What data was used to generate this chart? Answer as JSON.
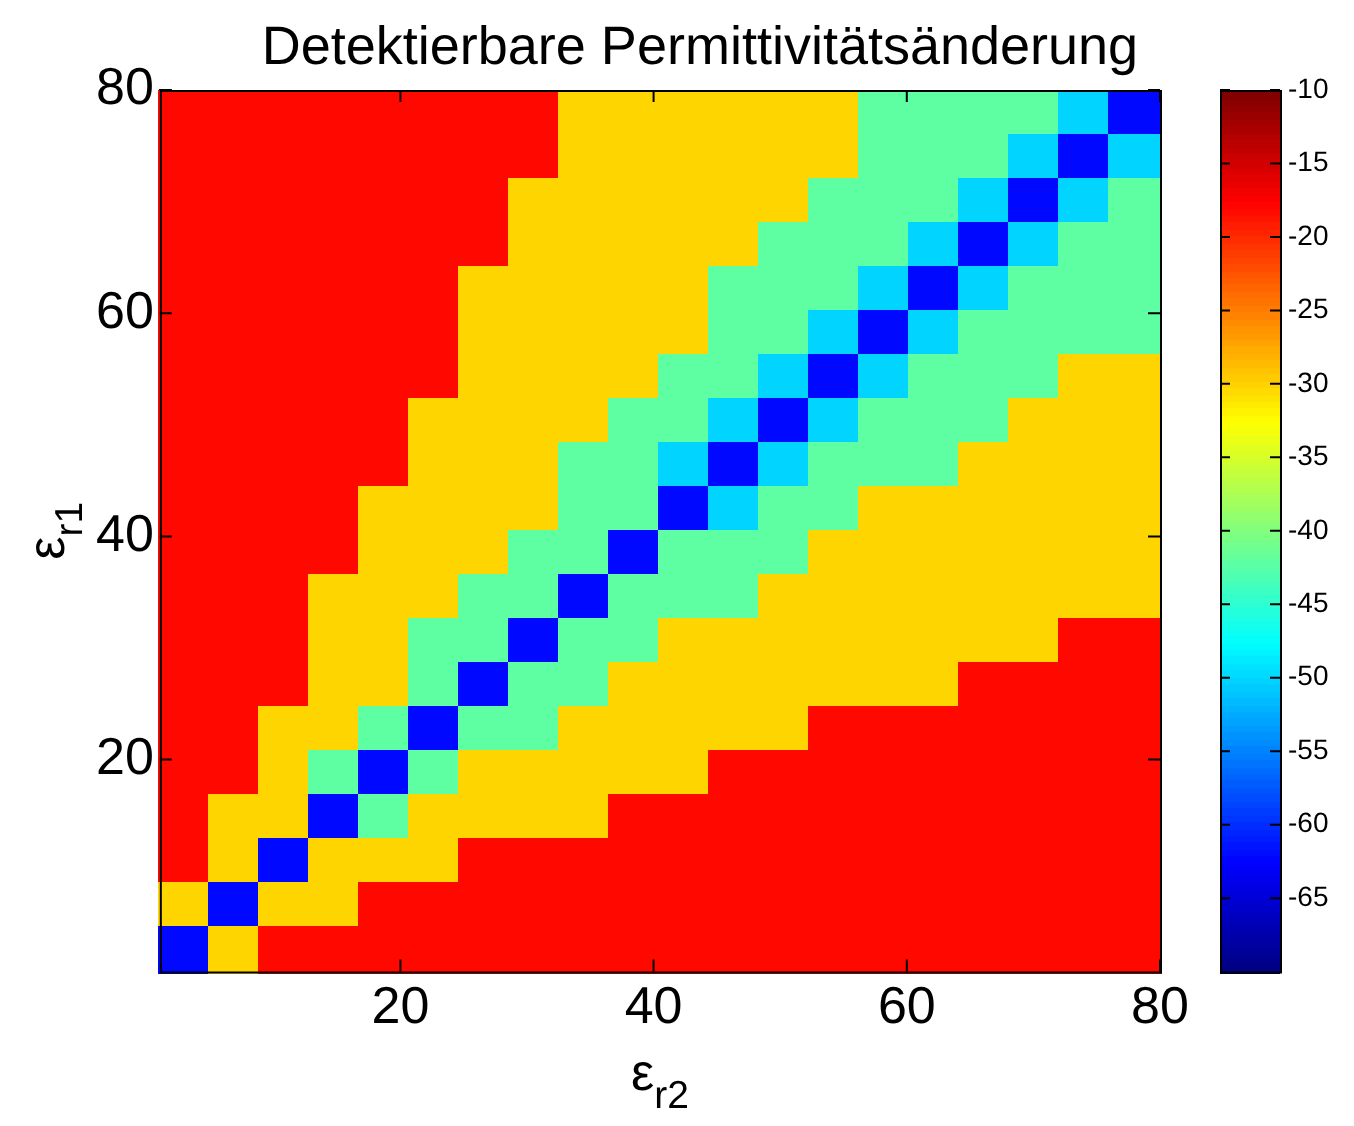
{
  "chart_data": {
    "type": "heatmap",
    "title": "Detektierbare Permittivitätsänderung",
    "xlabel": "ε$_{r2}$",
    "ylabel": "ε$_{r1}$",
    "x": [
      2.975,
      6.925,
      10.875,
      14.825,
      18.775,
      22.725,
      26.675,
      30.625,
      34.575,
      38.525,
      42.475,
      46.425,
      50.375,
      54.325,
      58.275,
      62.225,
      66.175,
      70.125,
      74.075,
      78.025
    ],
    "y": [
      78.025,
      74.075,
      70.125,
      66.175,
      62.225,
      58.275,
      54.325,
      50.375,
      46.425,
      42.475,
      38.525,
      34.575,
      30.625,
      26.675,
      22.725,
      18.775,
      14.825,
      10.875,
      6.925,
      2.975
    ],
    "xlim": [
      1,
      80
    ],
    "xticks": [
      20,
      40,
      60,
      80
    ],
    "ylim": [
      1,
      80
    ],
    "yticks": [
      20,
      40,
      60,
      80
    ],
    "clim": [
      -70,
      -10
    ],
    "cticks": [
      -10,
      -15,
      -20,
      -25,
      -30,
      -35,
      -40,
      -45,
      -50,
      -55,
      -60,
      -65
    ],
    "cells": [
      [
        -18,
        -18,
        -18,
        -18,
        -18,
        -18,
        -18,
        -18,
        -30,
        -30,
        -30,
        -30,
        -30,
        -30,
        -42,
        -42,
        -42,
        -42,
        -50,
        -62
      ],
      [
        -18,
        -18,
        -18,
        -18,
        -18,
        -18,
        -18,
        -18,
        -30,
        -30,
        -30,
        -30,
        -30,
        -30,
        -42,
        -42,
        -42,
        -50,
        -62,
        -50
      ],
      [
        -18,
        -18,
        -18,
        -18,
        -18,
        -18,
        -18,
        -30,
        -30,
        -30,
        -30,
        -30,
        -30,
        -42,
        -42,
        -42,
        -50,
        -62,
        -50,
        -42
      ],
      [
        -18,
        -18,
        -18,
        -18,
        -18,
        -18,
        -18,
        -30,
        -30,
        -30,
        -30,
        -30,
        -42,
        -42,
        -42,
        -50,
        -62,
        -50,
        -42,
        -42
      ],
      [
        -18,
        -18,
        -18,
        -18,
        -18,
        -18,
        -30,
        -30,
        -30,
        -30,
        -30,
        -42,
        -42,
        -42,
        -50,
        -62,
        -50,
        -42,
        -42,
        -42
      ],
      [
        -18,
        -18,
        -18,
        -18,
        -18,
        -18,
        -30,
        -30,
        -30,
        -30,
        -30,
        -42,
        -42,
        -50,
        -62,
        -50,
        -42,
        -42,
        -42,
        -42
      ],
      [
        -18,
        -18,
        -18,
        -18,
        -18,
        -18,
        -30,
        -30,
        -30,
        -30,
        -42,
        -42,
        -50,
        -62,
        -50,
        -42,
        -42,
        -42,
        -30,
        -30
      ],
      [
        -18,
        -18,
        -18,
        -18,
        -18,
        -30,
        -30,
        -30,
        -30,
        -42,
        -42,
        -50,
        -62,
        -50,
        -42,
        -42,
        -42,
        -30,
        -30,
        -30
      ],
      [
        -18,
        -18,
        -18,
        -18,
        -18,
        -30,
        -30,
        -30,
        -42,
        -42,
        -50,
        -62,
        -50,
        -42,
        -42,
        -42,
        -30,
        -30,
        -30,
        -30
      ],
      [
        -18,
        -18,
        -18,
        -18,
        -30,
        -30,
        -30,
        -30,
        -42,
        -42,
        -62,
        -50,
        -42,
        -42,
        -30,
        -30,
        -30,
        -30,
        -30,
        -30
      ],
      [
        -18,
        -18,
        -18,
        -18,
        -30,
        -30,
        -30,
        -42,
        -42,
        -62,
        -42,
        -42,
        -42,
        -30,
        -30,
        -30,
        -30,
        -30,
        -30,
        -30
      ],
      [
        -18,
        -18,
        -18,
        -30,
        -30,
        -30,
        -42,
        -42,
        -62,
        -42,
        -42,
        -42,
        -30,
        -30,
        -30,
        -30,
        -30,
        -30,
        -30,
        -30
      ],
      [
        -18,
        -18,
        -18,
        -30,
        -30,
        -42,
        -42,
        -62,
        -42,
        -42,
        -30,
        -30,
        -30,
        -30,
        -30,
        -30,
        -30,
        -30,
        -18,
        -18
      ],
      [
        -18,
        -18,
        -18,
        -30,
        -30,
        -42,
        -62,
        -42,
        -42,
        -30,
        -30,
        -30,
        -30,
        -30,
        -30,
        -30,
        -18,
        -18,
        -18,
        -18
      ],
      [
        -18,
        -18,
        -30,
        -30,
        -42,
        -62,
        -42,
        -42,
        -30,
        -30,
        -30,
        -30,
        -30,
        -18,
        -18,
        -18,
        -18,
        -18,
        -18,
        -18
      ],
      [
        -18,
        -18,
        -30,
        -42,
        -62,
        -42,
        -30,
        -30,
        -30,
        -30,
        -30,
        -18,
        -18,
        -18,
        -18,
        -18,
        -18,
        -18,
        -18,
        -18
      ],
      [
        -18,
        -30,
        -30,
        -62,
        -42,
        -30,
        -30,
        -30,
        -30,
        -18,
        -18,
        -18,
        -18,
        -18,
        -18,
        -18,
        -18,
        -18,
        -18,
        -18
      ],
      [
        -18,
        -30,
        -62,
        -30,
        -30,
        -30,
        -18,
        -18,
        -18,
        -18,
        -18,
        -18,
        -18,
        -18,
        -18,
        -18,
        -18,
        -18,
        -18,
        -18
      ],
      [
        -30,
        -62,
        -30,
        -30,
        -18,
        -18,
        -18,
        -18,
        -18,
        -18,
        -18,
        -18,
        -18,
        -18,
        -18,
        -18,
        -18,
        -18,
        -18,
        -18
      ],
      [
        -62,
        -30,
        -18,
        -18,
        -18,
        -18,
        -18,
        -18,
        -18,
        -18,
        -18,
        -18,
        -18,
        -18,
        -18,
        -18,
        -18,
        -18,
        -18,
        -18
      ]
    ]
  }
}
